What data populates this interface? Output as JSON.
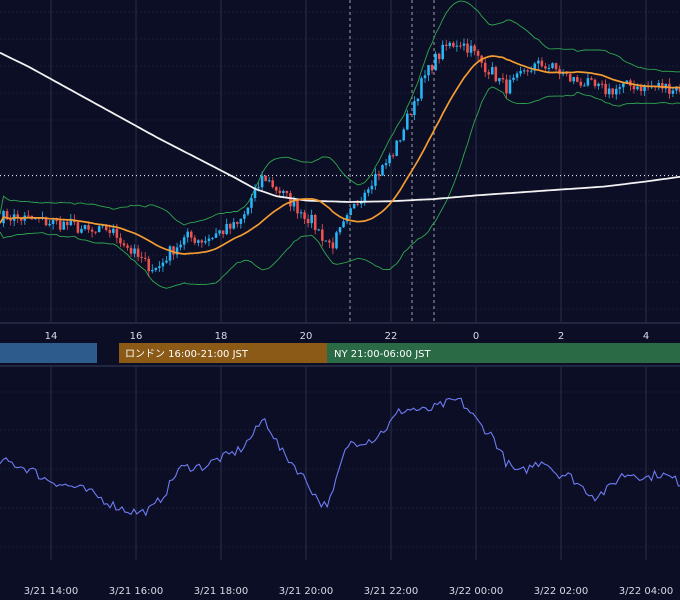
{
  "colors": {
    "background": "#0b0e25",
    "grid": "#2a2e48",
    "candle_up": "#29b6f6",
    "candle_down": "#ef5350",
    "bollinger": "#2fa84f",
    "ma_short": "#f39c33",
    "ma_long": "#f2f2f2",
    "oscillator": "#6f7cf5",
    "session_tokyo": "#2c5b8c",
    "session_london": "#8b5a16",
    "session_ny": "#2a6b46"
  },
  "sessions": [
    {
      "label": ""
    },
    {
      "label": "ロンドン 16:00-21:00 JST"
    },
    {
      "label": "NY 21:00-06:00 JST"
    }
  ],
  "chart_data": {
    "type": "candlestick",
    "x_axis_top_ticks": [
      "14",
      "16",
      "18",
      "20",
      "22",
      "0",
      "2",
      "4"
    ],
    "x_axis_bottom_ticks": [
      "3/21 14:00",
      "3/21 16:00",
      "3/21 18:00",
      "3/21 20:00",
      "3/21 22:00",
      "3/22 00:00",
      "3/22 02:00",
      "3/22 04:00"
    ],
    "close_path": [
      [
        13.0,
        0.72
      ],
      [
        13.5,
        0.7
      ],
      [
        14.0,
        0.68
      ],
      [
        14.5,
        0.66
      ],
      [
        15.0,
        0.6
      ],
      [
        15.3,
        0.64
      ],
      [
        15.6,
        0.58
      ],
      [
        15.9,
        0.48
      ],
      [
        16.2,
        0.4
      ],
      [
        16.5,
        0.36
      ],
      [
        16.8,
        0.48
      ],
      [
        17.2,
        0.58
      ],
      [
        17.6,
        0.56
      ],
      [
        18.0,
        0.62
      ],
      [
        18.4,
        0.66
      ],
      [
        18.6,
        0.76
      ],
      [
        18.8,
        0.88
      ],
      [
        19.0,
        1.0
      ],
      [
        19.2,
        0.94
      ],
      [
        19.5,
        0.86
      ],
      [
        19.8,
        0.78
      ],
      [
        20.1,
        0.7
      ],
      [
        20.4,
        0.58
      ],
      [
        20.6,
        0.52
      ],
      [
        20.9,
        0.66
      ],
      [
        21.2,
        0.82
      ],
      [
        21.5,
        0.96
      ],
      [
        21.8,
        1.05
      ],
      [
        22.1,
        1.18
      ],
      [
        22.4,
        1.4
      ],
      [
        22.7,
        1.62
      ],
      [
        23.0,
        1.78
      ],
      [
        23.3,
        1.88
      ],
      [
        23.6,
        1.92
      ],
      [
        23.9,
        1.86
      ],
      [
        24.1,
        1.78
      ],
      [
        24.4,
        1.7
      ],
      [
        24.7,
        1.6
      ],
      [
        25.0,
        1.66
      ],
      [
        25.3,
        1.74
      ],
      [
        25.6,
        1.76
      ],
      [
        25.9,
        1.72
      ],
      [
        26.2,
        1.66
      ],
      [
        26.5,
        1.64
      ],
      [
        26.8,
        1.6
      ],
      [
        27.1,
        1.58
      ],
      [
        27.4,
        1.6
      ],
      [
        27.7,
        1.62
      ],
      [
        28.0,
        1.6
      ],
      [
        28.3,
        1.61
      ],
      [
        28.6,
        1.6
      ],
      [
        29.0,
        1.6
      ]
    ],
    "ma_long_path": [
      [
        12.8,
        1.84
      ],
      [
        13.5,
        1.74
      ],
      [
        14.5,
        1.58
      ],
      [
        15.5,
        1.42
      ],
      [
        16.5,
        1.26
      ],
      [
        17.5,
        1.11
      ],
      [
        18.3,
        0.99
      ],
      [
        18.8,
        0.91
      ],
      [
        19.3,
        0.86
      ],
      [
        20.0,
        0.83
      ],
      [
        21.0,
        0.82
      ],
      [
        22.0,
        0.825
      ],
      [
        23.0,
        0.84
      ],
      [
        24.0,
        0.865
      ],
      [
        25.0,
        0.885
      ],
      [
        26.0,
        0.905
      ],
      [
        27.0,
        0.925
      ],
      [
        28.0,
        0.96
      ],
      [
        29.0,
        1.0
      ]
    ],
    "last_price_level": 1.0,
    "oscillator_path": [
      [
        13.0,
        0.52
      ],
      [
        13.3,
        0.48
      ],
      [
        13.6,
        0.44
      ],
      [
        13.8,
        0.38
      ],
      [
        14.0,
        0.36
      ],
      [
        14.3,
        0.32
      ],
      [
        14.6,
        0.3
      ],
      [
        14.9,
        0.26
      ],
      [
        15.2,
        0.2
      ],
      [
        15.5,
        0.14
      ],
      [
        15.8,
        0.1
      ],
      [
        16.1,
        0.08
      ],
      [
        16.4,
        0.12
      ],
      [
        16.7,
        0.26
      ],
      [
        17.0,
        0.46
      ],
      [
        17.3,
        0.48
      ],
      [
        17.6,
        0.48
      ],
      [
        17.9,
        0.54
      ],
      [
        18.2,
        0.58
      ],
      [
        18.5,
        0.64
      ],
      [
        18.8,
        0.78
      ],
      [
        19.0,
        0.9
      ],
      [
        19.2,
        0.78
      ],
      [
        19.4,
        0.62
      ],
      [
        19.7,
        0.5
      ],
      [
        20.0,
        0.36
      ],
      [
        20.2,
        0.24
      ],
      [
        20.4,
        0.14
      ],
      [
        20.6,
        0.2
      ],
      [
        20.8,
        0.48
      ],
      [
        21.0,
        0.68
      ],
      [
        21.3,
        0.7
      ],
      [
        21.6,
        0.72
      ],
      [
        21.9,
        0.82
      ],
      [
        22.2,
        0.96
      ],
      [
        22.5,
        0.98
      ],
      [
        22.8,
        0.96
      ],
      [
        23.1,
        1.0
      ],
      [
        23.4,
        1.04
      ],
      [
        23.6,
        1.06
      ],
      [
        23.8,
        0.98
      ],
      [
        24.1,
        0.84
      ],
      [
        24.4,
        0.74
      ],
      [
        24.7,
        0.52
      ],
      [
        25.0,
        0.42
      ],
      [
        25.3,
        0.48
      ],
      [
        25.6,
        0.54
      ],
      [
        25.9,
        0.42
      ],
      [
        26.2,
        0.4
      ],
      [
        26.5,
        0.3
      ],
      [
        26.8,
        0.22
      ],
      [
        27.1,
        0.28
      ],
      [
        27.4,
        0.4
      ],
      [
        27.7,
        0.42
      ],
      [
        28.0,
        0.38
      ],
      [
        28.3,
        0.42
      ],
      [
        28.6,
        0.38
      ],
      [
        28.9,
        0.32
      ]
    ],
    "oscillator_ylim": [
      0.0,
      1.1
    ],
    "price_ylim": [
      0.0,
      2.2
    ],
    "x_range": [
      12.8,
      28.8
    ]
  }
}
